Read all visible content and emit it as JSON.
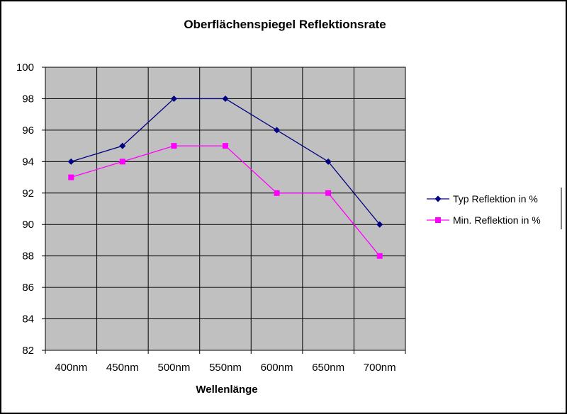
{
  "chart_data": {
    "type": "line",
    "title": "Oberflächenspiegel Reflektionsrate",
    "xlabel": "Wellenlänge",
    "ylabel": "",
    "categories": [
      "400nm",
      "450nm",
      "500nm",
      "550nm",
      "600nm",
      "650nm",
      "700nm"
    ],
    "ylim": [
      82,
      100
    ],
    "yticks": [
      82,
      84,
      86,
      88,
      90,
      92,
      94,
      96,
      98,
      100
    ],
    "grid": true,
    "legend_position": "right",
    "plot_background": "#c0c0c0",
    "series": [
      {
        "name": "Typ Reflektion in %",
        "values": [
          94,
          95,
          98,
          98,
          96,
          94,
          90
        ],
        "color": "#000080",
        "marker": "diamond"
      },
      {
        "name": "Min. Reflektion in %",
        "values": [
          93,
          94,
          95,
          95,
          92,
          92,
          88
        ],
        "color": "#ff00ff",
        "marker": "square"
      }
    ]
  }
}
